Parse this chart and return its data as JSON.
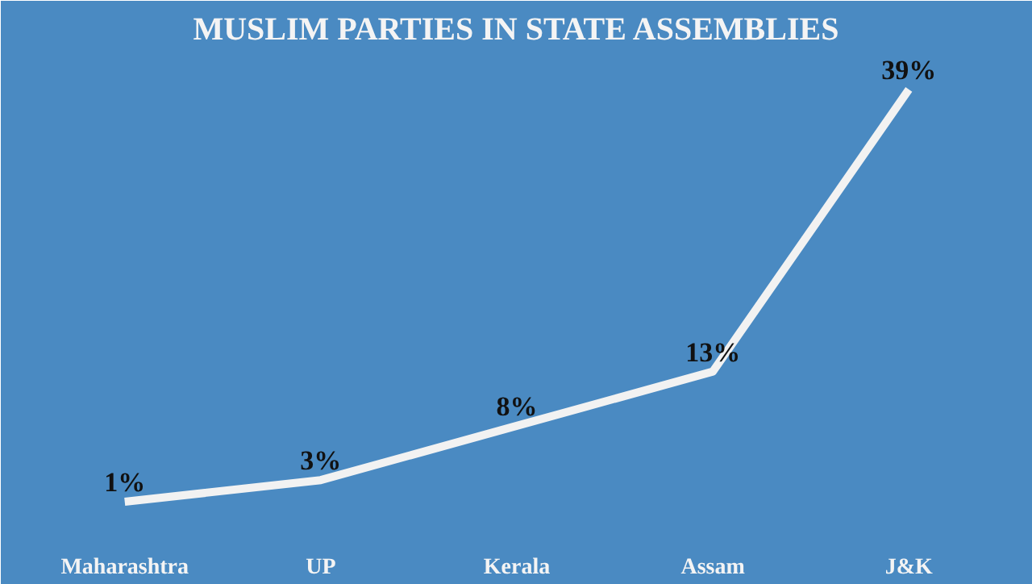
{
  "chart_data": {
    "type": "line",
    "title": "MUSLIM PARTIES IN STATE ASSEMBLIES",
    "categories": [
      "Maharashtra",
      "UP",
      "Kerala",
      "Assam",
      "J&K"
    ],
    "values": [
      1,
      3,
      8,
      13,
      39
    ],
    "value_labels": [
      "1%",
      "3%",
      "8%",
      "13%",
      "39%"
    ],
    "color": "#f2f2f2"
  }
}
